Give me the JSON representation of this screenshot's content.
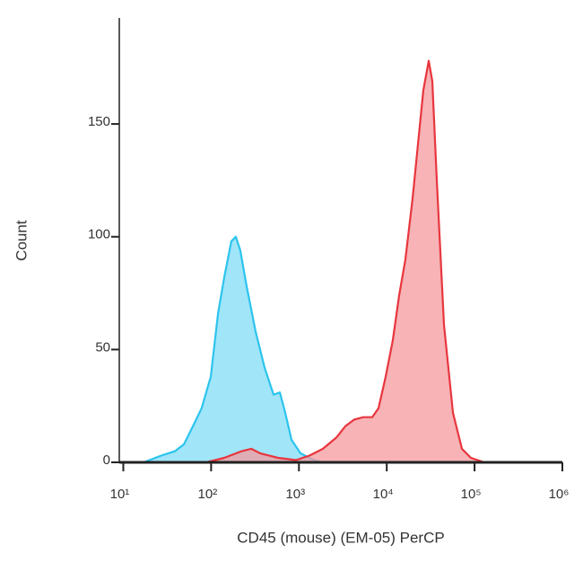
{
  "chart_data": {
    "type": "histogram-overlay",
    "xlabel": "CD45 (mouse) (EM-05) PerCP",
    "ylabel": "Count",
    "xscale": "log",
    "xlim": [
      9,
      1000000
    ],
    "ylim": [
      0,
      197
    ],
    "xticks": [
      {
        "value": 10,
        "label": "10¹"
      },
      {
        "value": 100,
        "label": "10²"
      },
      {
        "value": 1000,
        "label": "10³"
      },
      {
        "value": 10000,
        "label": "10⁴"
      },
      {
        "value": 100000,
        "label": "10⁵"
      },
      {
        "value": 1000000,
        "label": "10⁶"
      }
    ],
    "yticks": [
      0,
      50,
      100,
      150
    ],
    "series": [
      {
        "color": "#2cc4ee",
        "fill": "#82dcf7",
        "x": [
          17,
          27,
          39,
          49,
          62,
          78,
          99,
          120,
          141,
          170,
          191,
          215,
          254,
          321,
          406,
          514,
          606,
          698,
          822,
          1040,
          1480,
          1875
        ],
        "values": [
          0,
          3,
          5,
          8,
          16,
          24,
          38,
          66,
          82,
          98,
          100,
          94,
          78,
          58,
          42,
          30,
          31,
          22,
          10,
          4,
          1,
          0
        ]
      },
      {
        "color": "#e8363e",
        "fill": "#f49a9d",
        "x": [
          88,
          141,
          225,
          286,
          361,
          578,
          925,
          1316,
          1875,
          2667,
          3373,
          4270,
          5400,
          6840,
          8050,
          9720,
          11720,
          13830,
          16300,
          19670,
          23220,
          26120,
          30060,
          33040,
          37150,
          44870,
          56750,
          71780,
          90780,
          129100,
          206500
        ],
        "values": [
          0,
          2,
          5,
          6,
          4,
          2,
          1,
          3,
          6,
          11,
          16,
          19,
          20,
          20,
          24,
          38,
          54,
          74,
          90,
          117,
          145,
          165,
          178,
          169,
          125,
          61,
          22,
          6,
          2,
          0,
          0
        ]
      }
    ]
  }
}
